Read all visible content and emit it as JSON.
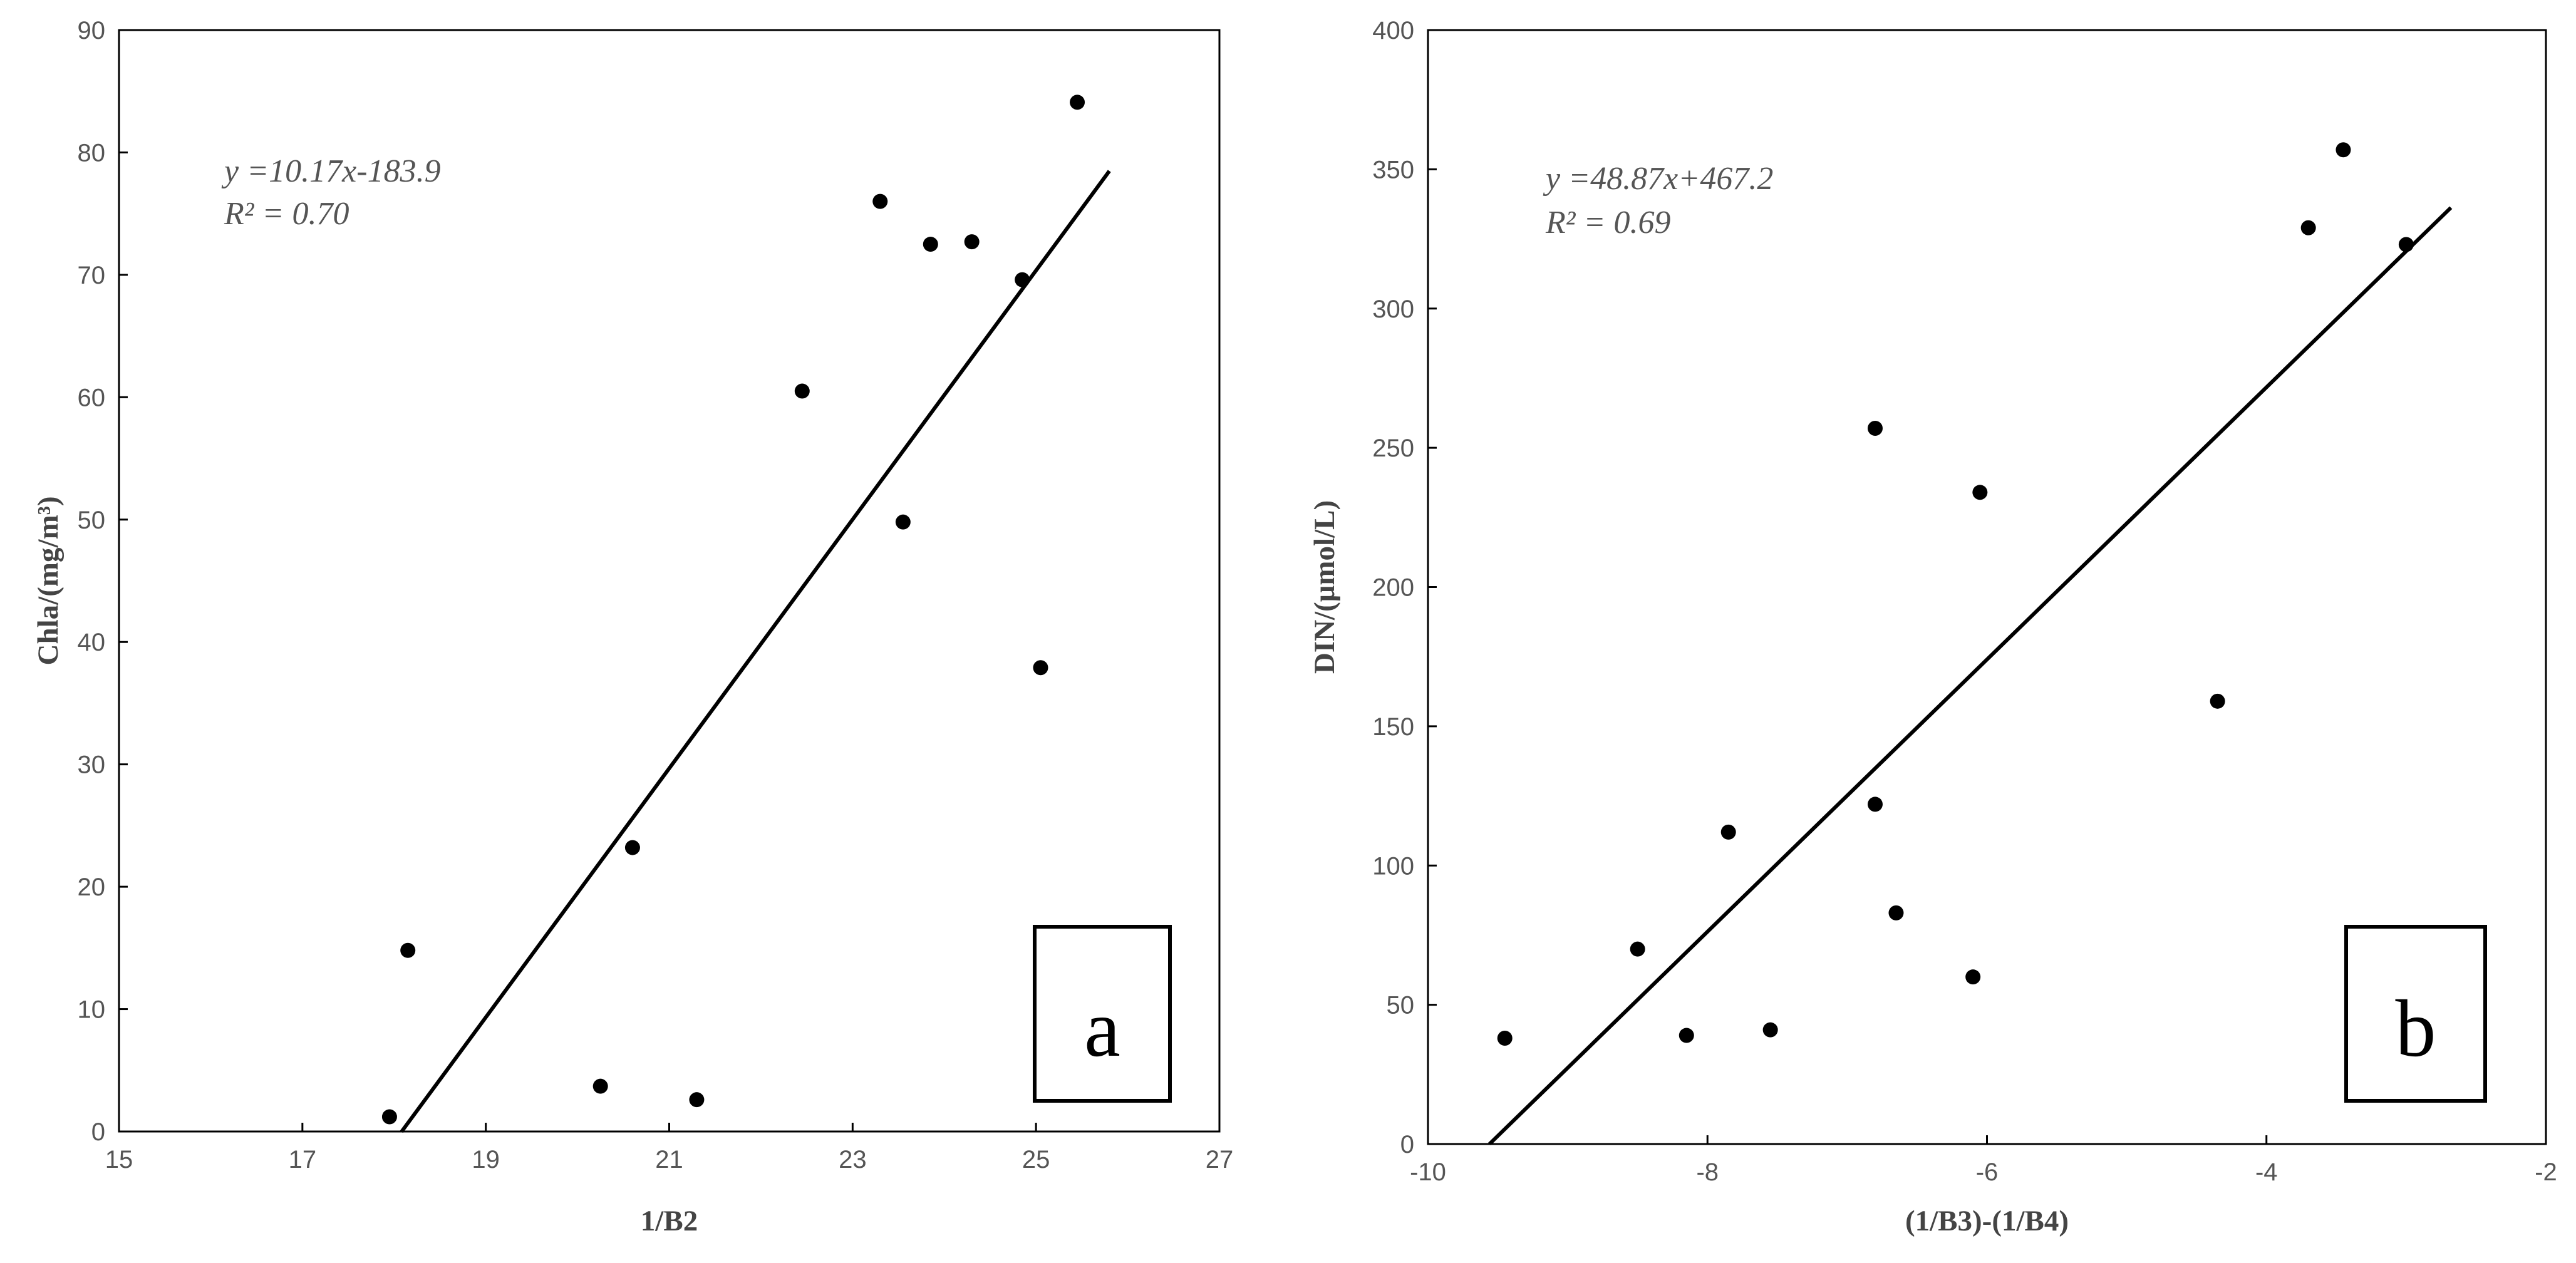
{
  "chart_data": [
    {
      "type": "scatter",
      "panel_label": "a",
      "xlabel": "1/B2",
      "ylabel": "Chla/(mg/m³)",
      "xlim": [
        15,
        27
      ],
      "ylim": [
        0,
        90
      ],
      "x_ticks": [
        "15",
        "17",
        "19",
        "21",
        "23",
        "25",
        "27"
      ],
      "y_ticks": [
        "0",
        "10",
        "20",
        "30",
        "40",
        "50",
        "60",
        "70",
        "80",
        "90"
      ],
      "equation": "y =10.17x-183.9",
      "r_squared": "R² = 0.70",
      "fit": {
        "slope": 10.17,
        "intercept": -183.9,
        "x_range": [
          18.08,
          25.8
        ]
      },
      "points": [
        {
          "x": 17.95,
          "y": 1.2
        },
        {
          "x": 18.15,
          "y": 14.8
        },
        {
          "x": 20.25,
          "y": 3.7
        },
        {
          "x": 20.6,
          "y": 23.2
        },
        {
          "x": 21.3,
          "y": 2.6
        },
        {
          "x": 22.45,
          "y": 60.5
        },
        {
          "x": 23.3,
          "y": 76.0
        },
        {
          "x": 23.55,
          "y": 49.8
        },
        {
          "x": 23.85,
          "y": 72.5
        },
        {
          "x": 24.3,
          "y": 72.7
        },
        {
          "x": 24.85,
          "y": 69.6
        },
        {
          "x": 25.05,
          "y": 37.9
        },
        {
          "x": 25.45,
          "y": 84.1
        }
      ]
    },
    {
      "type": "scatter",
      "panel_label": "b",
      "xlabel": "(1/B3)-(1/B4)",
      "ylabel": "DIN/(μmol/L)",
      "xlim": [
        -10,
        -2
      ],
      "ylim": [
        0,
        400
      ],
      "x_ticks": [
        "-10",
        "-8",
        "-6",
        "-4",
        "-2"
      ],
      "y_ticks": [
        "0",
        "50",
        "100",
        "150",
        "200",
        "250",
        "300",
        "350",
        "400"
      ],
      "equation": "y =48.87x+467.2",
      "r_squared": "R² = 0.69",
      "fit": {
        "slope": 48.87,
        "intercept": 467.2,
        "x_range": [
          -9.56,
          -2.68
        ]
      },
      "points": [
        {
          "x": -9.45,
          "y": 38
        },
        {
          "x": -8.5,
          "y": 70
        },
        {
          "x": -8.15,
          "y": 39
        },
        {
          "x": -7.85,
          "y": 112
        },
        {
          "x": -7.55,
          "y": 41
        },
        {
          "x": -6.8,
          "y": 257
        },
        {
          "x": -6.8,
          "y": 122
        },
        {
          "x": -6.65,
          "y": 83
        },
        {
          "x": -6.1,
          "y": 60
        },
        {
          "x": -6.05,
          "y": 234
        },
        {
          "x": -4.35,
          "y": 159
        },
        {
          "x": -3.7,
          "y": 329
        },
        {
          "x": -3.45,
          "y": 357
        },
        {
          "x": -3.0,
          "y": 323
        }
      ]
    }
  ]
}
